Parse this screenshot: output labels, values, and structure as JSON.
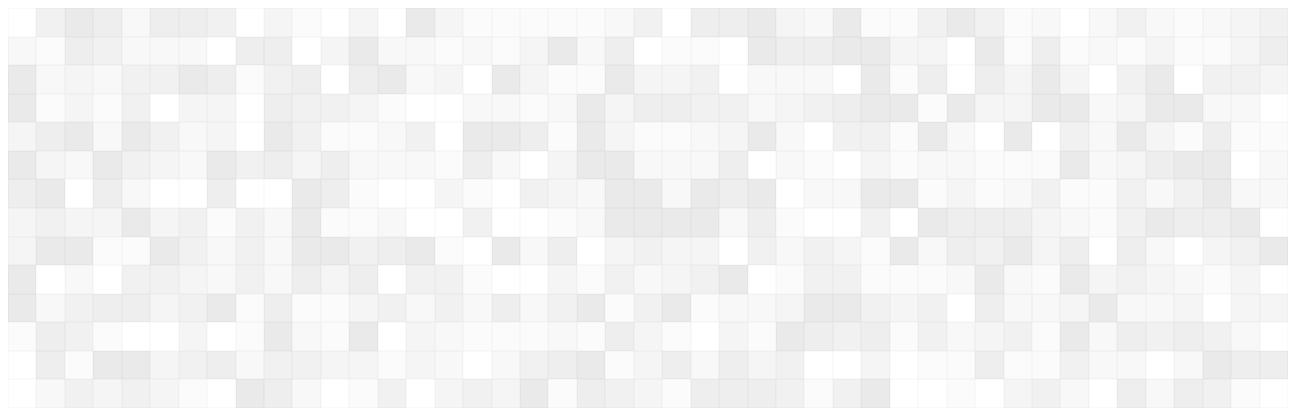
{
  "pattern": {
    "kind": "grayscale-mosaic",
    "columns": 45,
    "rows": 14,
    "palette": [
      "#ffffff",
      "#fbfbfb",
      "#f8f8f8",
      "#f5f5f5",
      "#f1f1f1",
      "#eeeeee",
      "#eaeaea"
    ]
  }
}
